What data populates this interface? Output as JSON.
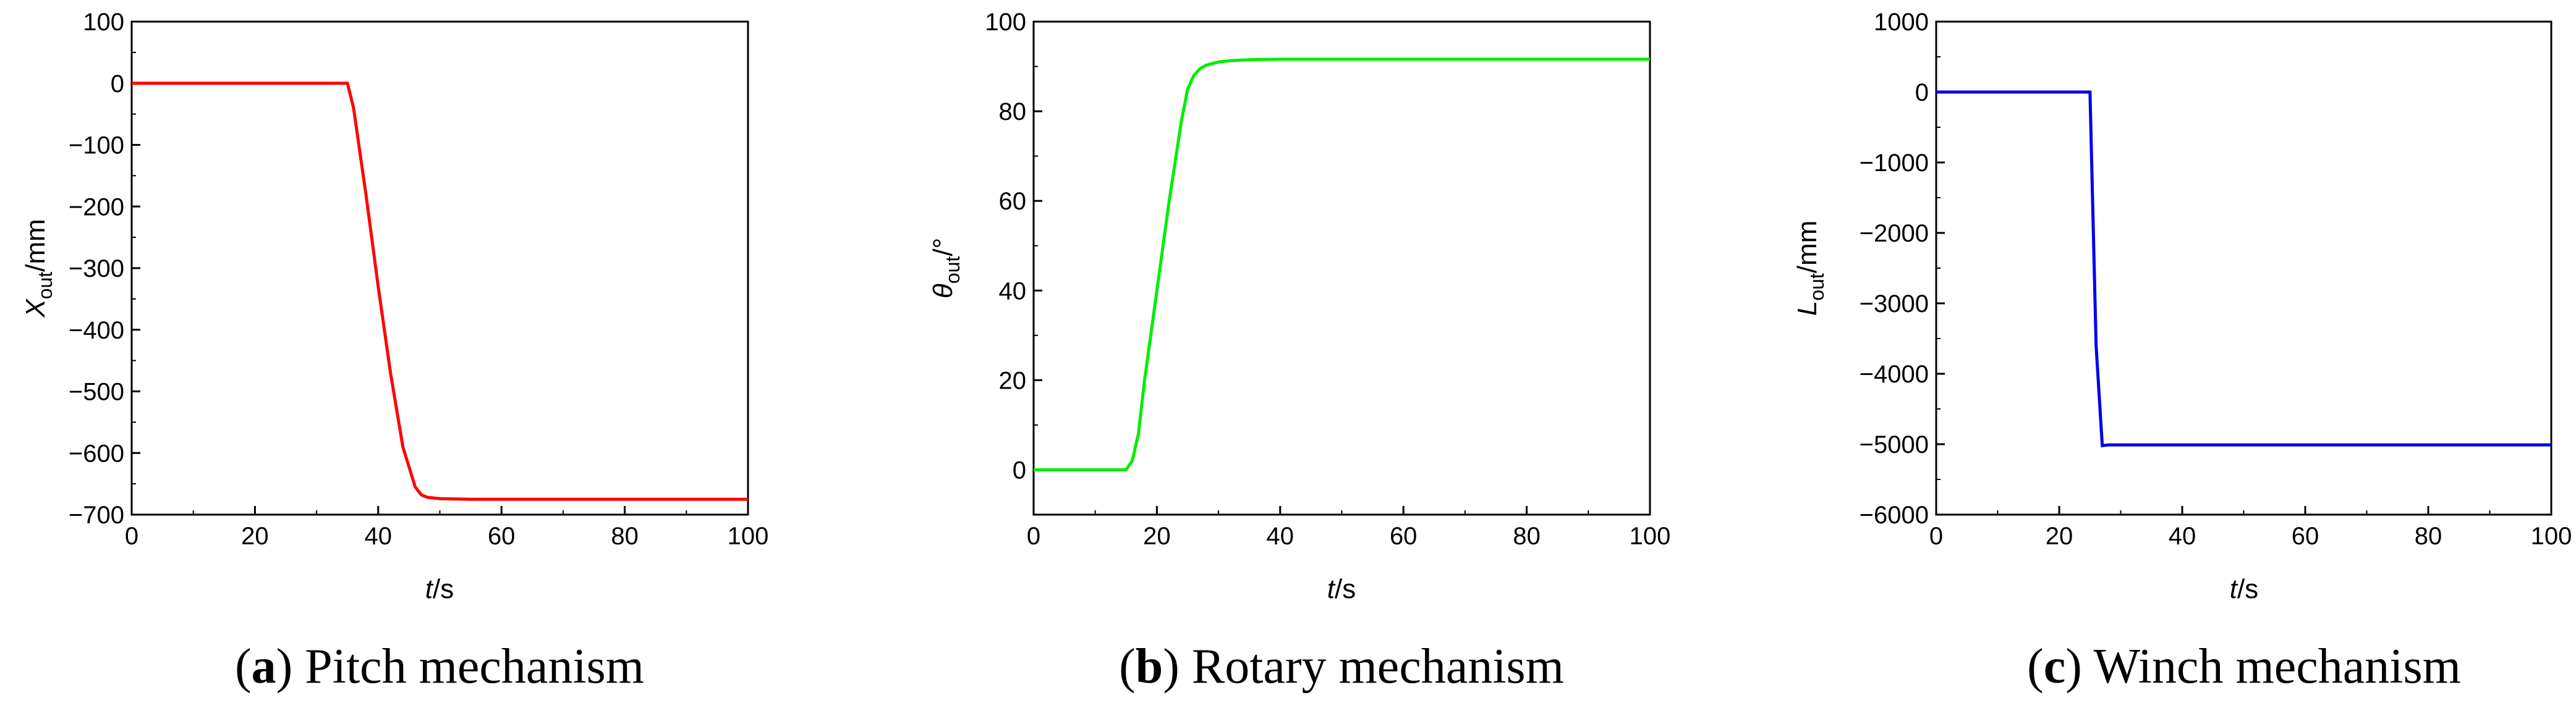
{
  "panels": [
    {
      "caption_letter": "a",
      "caption_text": " Pitch mechanism",
      "ylabel_symbol": "X",
      "ylabel_sub": "out",
      "ylabel_unit": "/mm",
      "xlabel_symbol": "t",
      "xlabel_unit": "/s",
      "line_color": "#ff0000"
    },
    {
      "caption_letter": "b",
      "caption_text": " Rotary mechanism",
      "ylabel_symbol": "θ",
      "ylabel_sub": "out",
      "ylabel_unit": "/°",
      "xlabel_symbol": "t",
      "xlabel_unit": "/s",
      "line_color": "#00ee00"
    },
    {
      "caption_letter": "c",
      "caption_text": " Winch mechanism",
      "ylabel_symbol": "L",
      "ylabel_sub": "out",
      "ylabel_unit": "/mm",
      "xlabel_symbol": "t",
      "xlabel_unit": "/s",
      "line_color": "#0000ee"
    }
  ],
  "chart_data": [
    {
      "type": "line",
      "title": "",
      "xlabel": "t/s",
      "ylabel": "Xout/mm",
      "xlim": [
        0,
        100
      ],
      "ylim": [
        -700,
        100
      ],
      "xticks": [
        0,
        20,
        40,
        60,
        80,
        100
      ],
      "yticks": [
        100,
        0,
        -100,
        -200,
        -300,
        -400,
        -500,
        -600,
        -700
      ],
      "grid": false,
      "series": [
        {
          "x": [
            0,
            10,
            20,
            30,
            35,
            36,
            38,
            40,
            42,
            44,
            46,
            47,
            48,
            50,
            55,
            60,
            70,
            80,
            90,
            100
          ],
          "y": [
            0,
            0,
            0,
            0,
            0,
            -40,
            -180,
            -330,
            -470,
            -590,
            -655,
            -668,
            -672,
            -674,
            -675,
            -675,
            -675,
            -675,
            -675,
            -675
          ]
        }
      ]
    },
    {
      "type": "line",
      "title": "",
      "xlabel": "t/s",
      "ylabel": "θout/°",
      "xlim": [
        0,
        100
      ],
      "ylim": [
        -10,
        100
      ],
      "xticks": [
        0,
        20,
        40,
        60,
        80,
        100
      ],
      "yticks": [
        100,
        80,
        60,
        40,
        20,
        0
      ],
      "grid": false,
      "series": [
        {
          "x": [
            0,
            5,
            10,
            15,
            16,
            17,
            18,
            20,
            22,
            24,
            25,
            26,
            27,
            28,
            30,
            32,
            35,
            40,
            50,
            60,
            80,
            100
          ],
          "y": [
            0,
            0,
            0,
            0,
            2,
            8,
            20,
            40,
            60,
            78,
            85,
            88,
            89.5,
            90.3,
            91,
            91.3,
            91.5,
            91.6,
            91.6,
            91.6,
            91.6,
            91.6
          ]
        }
      ]
    },
    {
      "type": "line",
      "title": "",
      "xlabel": "t/s",
      "ylabel": "Lout/mm",
      "xlim": [
        0,
        100
      ],
      "ylim": [
        -6000,
        1000
      ],
      "xticks": [
        0,
        20,
        40,
        60,
        80,
        100
      ],
      "yticks": [
        1000,
        0,
        -1000,
        -2000,
        -3000,
        -4000,
        -5000,
        -6000
      ],
      "grid": false,
      "series": [
        {
          "x": [
            0,
            10,
            20,
            25,
            26,
            27,
            28,
            40,
            60,
            80,
            100
          ],
          "y": [
            0,
            0,
            0,
            0,
            -3600,
            -5020,
            -5010,
            -5010,
            -5010,
            -5010,
            -5010
          ]
        }
      ]
    }
  ]
}
